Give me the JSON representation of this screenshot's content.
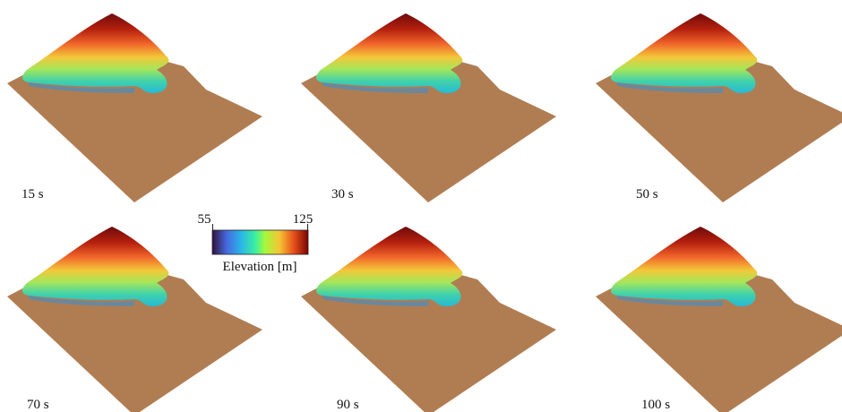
{
  "panels": [
    {
      "label": "15 s"
    },
    {
      "label": "30 s"
    },
    {
      "label": "50 s"
    },
    {
      "label": "70 s"
    },
    {
      "label": "90 s"
    },
    {
      "label": "100 s"
    }
  ],
  "colorbar": {
    "min": 55,
    "max": 125,
    "label": "Elevation [m]"
  }
}
